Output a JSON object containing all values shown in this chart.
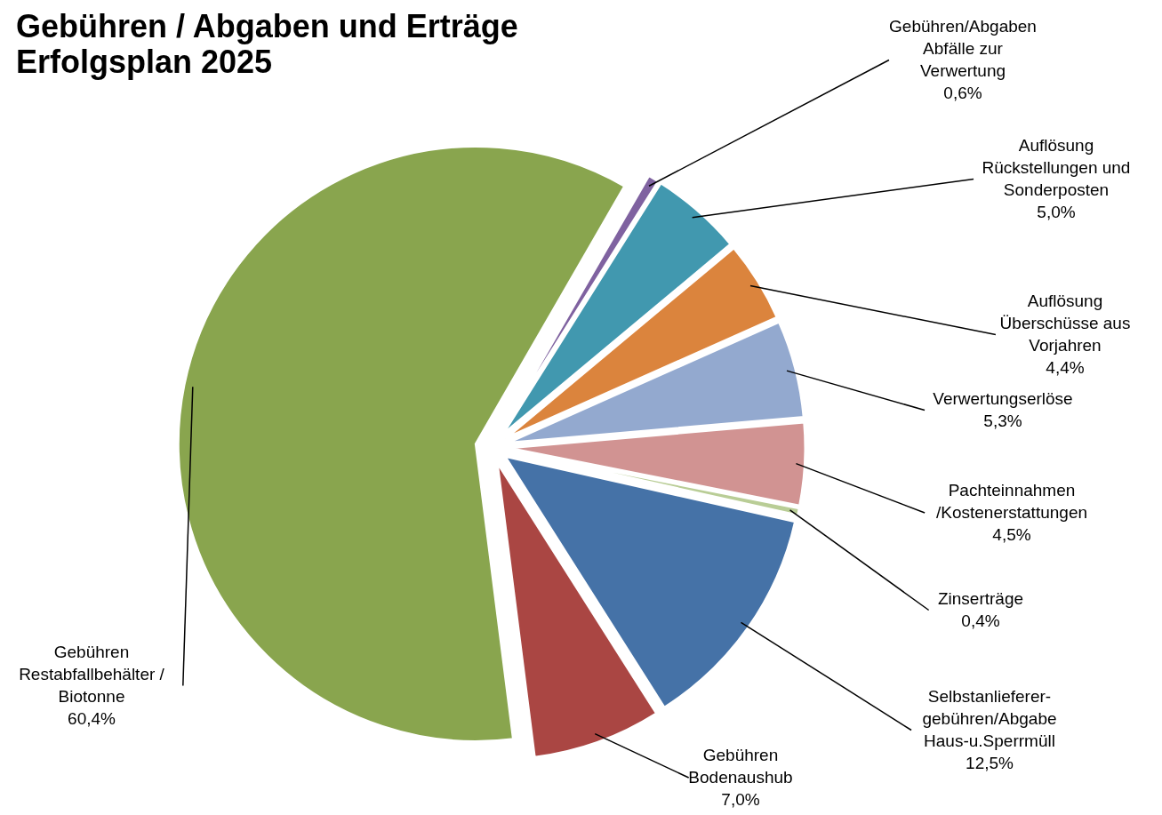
{
  "chart_data": {
    "type": "pie",
    "title": "Gebühren / Abgaben und Erträge",
    "subtitle": "Erfolgsplan 2025",
    "categories": [
      "Gebühren/Abgaben Abfälle zur Verwertung",
      "Auflösung Rückstellungen und Sonderposten",
      "Auflösung Überschüsse aus Vorjahren",
      "Verwertungserlöse",
      "Pachteinnahmen /Kostenerstattungen",
      "Zinserträge",
      "Selbstanlieferer-gebühren/Abgabe Haus-u.Sperrmüll",
      "Gebühren Bodenaushub",
      "Gebühren Restabfallbehälter / Biotonne"
    ],
    "values": [
      0.6,
      5.0,
      4.4,
      5.3,
      4.5,
      0.4,
      12.5,
      7.0,
      60.4
    ],
    "colors": [
      "#7f62a0",
      "#4198af",
      "#db843d",
      "#93a9cf",
      "#d19392",
      "#b9cd96",
      "#4572a7",
      "#aa4643",
      "#89a54e"
    ],
    "value_labels": [
      "0,6%",
      "5,0%",
      "4,4%",
      "5,3%",
      "4,5%",
      "0,4%",
      "12,5%",
      "7,0%",
      "60,4%"
    ]
  }
}
